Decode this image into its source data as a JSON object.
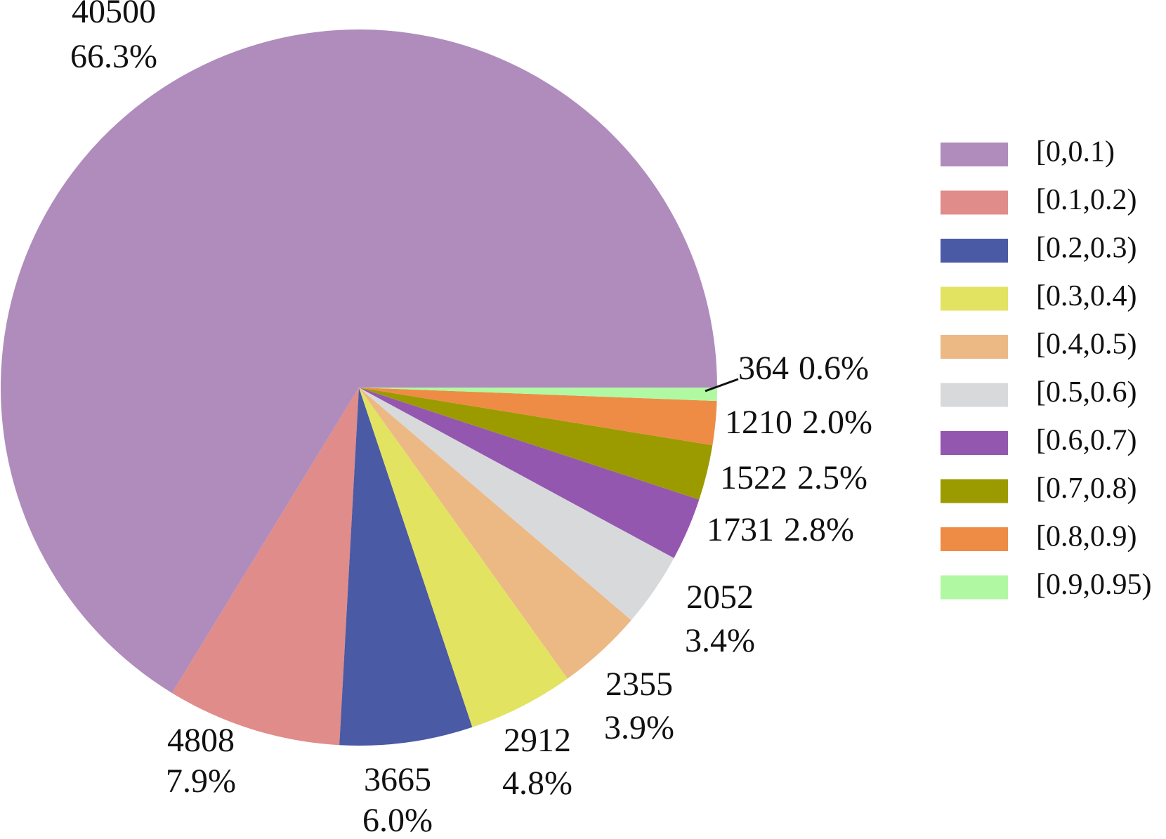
{
  "chart_data": {
    "type": "pie",
    "categories": [
      "[0,0.1)",
      "[0.1,0.2)",
      "[0.2,0.3)",
      "[0.3,0.4)",
      "[0.4,0.5)",
      "[0.5,0.6)",
      "[0.6,0.7)",
      "[0.7,0.8)",
      "[0.8,0.9)",
      "[0.9,0.95)"
    ],
    "values": [
      40500,
      4808,
      3665,
      2912,
      2355,
      2052,
      1731,
      1522,
      1210,
      364
    ],
    "percent_labels": [
      "66.3%",
      "7.9%",
      "6.0%",
      "4.8%",
      "3.9%",
      "3.4%",
      "2.8%",
      "2.5%",
      "2.0%",
      "0.6%"
    ],
    "colors": [
      "#af8cbc",
      "#e08c8a",
      "#4a5aa5",
      "#e3e362",
      "#ecb985",
      "#d8d9db",
      "#9457b0",
      "#9b9b00",
      "#ee8c46",
      "#b1f8a3"
    ],
    "legend": "right"
  }
}
